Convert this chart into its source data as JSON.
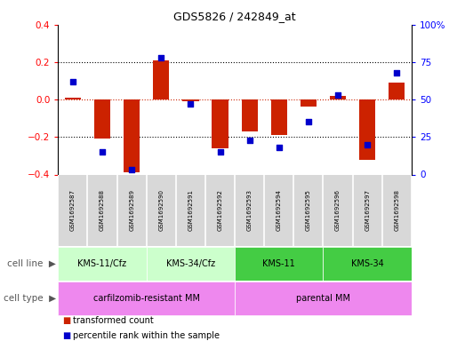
{
  "title": "GDS5826 / 242849_at",
  "samples": [
    "GSM1692587",
    "GSM1692588",
    "GSM1692589",
    "GSM1692590",
    "GSM1692591",
    "GSM1692592",
    "GSM1692593",
    "GSM1692594",
    "GSM1692595",
    "GSM1692596",
    "GSM1692597",
    "GSM1692598"
  ],
  "transformed_count": [
    0.01,
    -0.21,
    -0.39,
    0.21,
    -0.01,
    -0.26,
    -0.17,
    -0.19,
    -0.04,
    0.02,
    -0.32,
    0.09
  ],
  "percentile_rank": [
    62,
    15,
    3,
    78,
    47,
    15,
    23,
    18,
    35,
    53,
    20,
    68
  ],
  "ylim_left": [
    -0.4,
    0.4
  ],
  "ylim_right": [
    0,
    100
  ],
  "yticks_left": [
    -0.4,
    -0.2,
    0.0,
    0.2,
    0.4
  ],
  "yticks_right": [
    0,
    25,
    50,
    75,
    100
  ],
  "ytick_labels_right": [
    "0",
    "25",
    "50",
    "75",
    "100%"
  ],
  "cell_line_groups": [
    {
      "label": "KMS-11/Cfz",
      "start": 0,
      "end": 3,
      "color": "#ccffcc"
    },
    {
      "label": "KMS-34/Cfz",
      "start": 3,
      "end": 6,
      "color": "#ccffcc"
    },
    {
      "label": "KMS-11",
      "start": 6,
      "end": 9,
      "color": "#44cc44"
    },
    {
      "label": "KMS-34",
      "start": 9,
      "end": 12,
      "color": "#44cc44"
    }
  ],
  "cell_type_groups": [
    {
      "label": "carfilzomib-resistant MM",
      "start": 0,
      "end": 6,
      "color": "#ee88ee"
    },
    {
      "label": "parental MM",
      "start": 6,
      "end": 12,
      "color": "#ee88ee"
    }
  ],
  "bar_color": "#cc2200",
  "dot_color": "#0000cc",
  "zero_line_color": "#cc2200",
  "bg_color": "white",
  "legend_fontsize": 7.5,
  "bar_width": 0.55,
  "dot_size": 16
}
